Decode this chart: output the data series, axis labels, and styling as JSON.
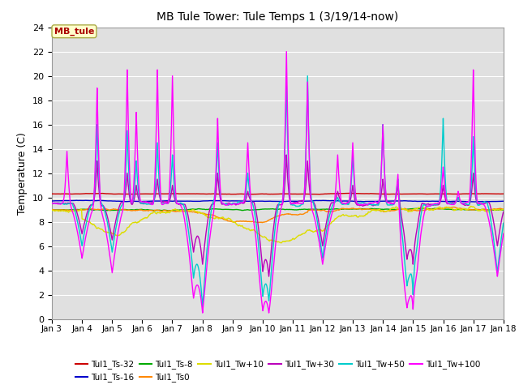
{
  "title": "MB Tule Tower: Tule Temps 1 (3/19/14-now)",
  "ylabel": "Temperature (C)",
  "xlim": [
    0,
    15
  ],
  "ylim": [
    0,
    24
  ],
  "yticks": [
    0,
    2,
    4,
    6,
    8,
    10,
    12,
    14,
    16,
    18,
    20,
    22,
    24
  ],
  "xtick_labels": [
    "Jan 3",
    "Jan 4",
    "Jan 5",
    "Jan 6",
    "Jan 7",
    "Jan 8",
    "Jan 9",
    "Jan 10",
    "Jan 11",
    "Jan 12",
    "Jan 13",
    "Jan 14",
    "Jan 15",
    "Jan 16",
    "Jan 17",
    "Jan 18"
  ],
  "legend_label": "MB_tule",
  "background_color": "#e0e0e0",
  "grid_color": "#ffffff",
  "series": [
    {
      "name": "Tul1_Ts-32",
      "color": "#cc0000",
      "lw": 1.0
    },
    {
      "name": "Tul1_Ts-16",
      "color": "#0000cc",
      "lw": 1.0
    },
    {
      "name": "Tul1_Ts-8",
      "color": "#00aa00",
      "lw": 1.0
    },
    {
      "name": "Tul1_Ts0",
      "color": "#ff8800",
      "lw": 1.0
    },
    {
      "name": "Tul1_Tw+10",
      "color": "#dddd00",
      "lw": 1.0
    },
    {
      "name": "Tul1_Tw+30",
      "color": "#bb00bb",
      "lw": 1.0
    },
    {
      "name": "Tul1_Tw+50",
      "color": "#00cccc",
      "lw": 1.0
    },
    {
      "name": "Tul1_Tw+100",
      "color": "#ff00ff",
      "lw": 1.0
    }
  ]
}
